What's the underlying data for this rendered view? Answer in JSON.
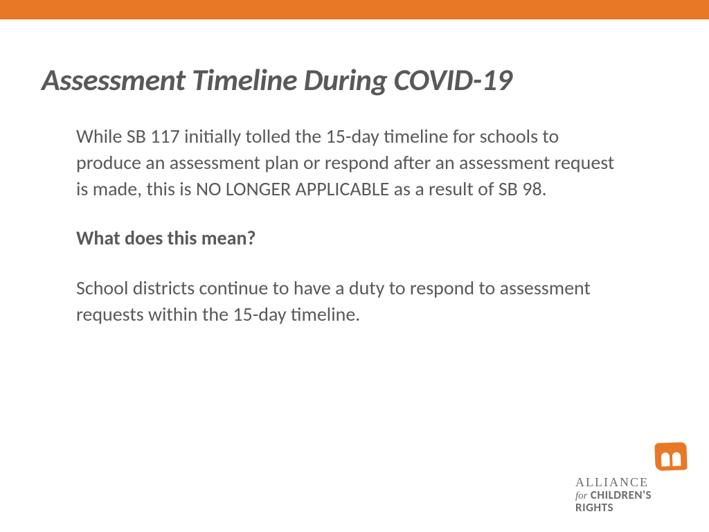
{
  "colors": {
    "accent": "#e97826",
    "title": "#595959",
    "body": "#595959",
    "logo_text": "#6d6d6d",
    "logo_icon": "#e97826",
    "background": "#ffffff"
  },
  "title": "Assessment Timeline During COVID-19",
  "paragraphs": {
    "p1": "While SB 117 initially tolled the 15-day timeline for schools to produce an assessment plan or respond after an assessment request is made, this is NO LONGER APPLICABLE as a result of SB 98.",
    "q": "What does this mean?",
    "p2": "School districts continue to have a duty to respond to assessment requests within the 15-day timeline."
  },
  "logo": {
    "line1": "ALLIANCE",
    "for": "for",
    "line2": " CHILDREN'S",
    "line3": "RIGHTS"
  }
}
